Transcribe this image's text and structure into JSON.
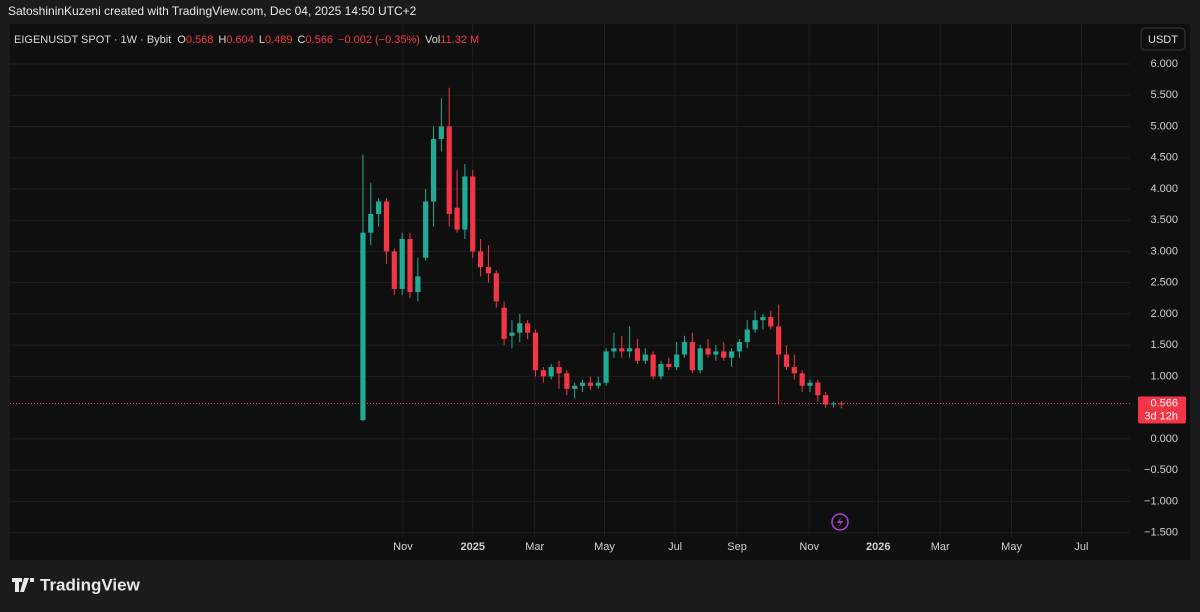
{
  "attribution": "SatoshininKuzeni created with TradingView.com, Dec 04, 2025 14:50 UTC+2",
  "branding": "TradingView",
  "chart_data": {
    "type": "candlestick",
    "title": "EIGENUSDT SPOT · 1W · Bybit",
    "legend": [
      {
        "label": "O",
        "value": "0.568"
      },
      {
        "label": "H",
        "value": "0.604"
      },
      {
        "label": "L",
        "value": "0.489"
      },
      {
        "label": "C",
        "value": "0.566"
      },
      {
        "label": "",
        "value": "−0.002 (−0.35%)"
      },
      {
        "label": "Vol",
        "value": "11.32 M"
      }
    ],
    "currency": "USDT",
    "last_price": 0.566,
    "countdown": "3d 12h",
    "up_color": "#22ab94",
    "down_color": "#f23645",
    "grid": true,
    "categories": [
      null,
      null,
      null,
      null,
      null,
      null,
      null,
      null,
      null,
      null,
      null,
      null,
      null,
      null,
      null,
      null,
      null,
      null,
      null,
      null,
      null,
      null,
      null,
      null,
      null,
      null,
      null,
      null,
      null,
      null,
      null,
      null,
      null,
      null,
      null,
      null,
      null,
      null,
      null,
      null,
      null,
      null,
      null,
      null,
      null,
      null,
      null,
      null,
      null,
      null,
      null,
      null,
      null,
      null,
      null,
      null,
      null,
      null,
      null,
      null,
      null,
      null
    ],
    "open": [
      0.3,
      3.3,
      3.6,
      3.8,
      3.0,
      2.4,
      3.2,
      2.35,
      2.9,
      3.8,
      4.8,
      5.0,
      3.7,
      3.35,
      4.2,
      3.0,
      2.75,
      2.65,
      2.1,
      1.65,
      1.7,
      1.85,
      1.7,
      1.1,
      1.0,
      1.15,
      1.05,
      0.8,
      0.85,
      0.9,
      0.85,
      0.9,
      1.4,
      1.45,
      1.4,
      1.45,
      1.25,
      1.35,
      1.0,
      1.2,
      1.15,
      1.35,
      1.55,
      1.1,
      1.45,
      1.35,
      1.4,
      1.3,
      1.4,
      1.55,
      1.75,
      1.9,
      1.95,
      1.8,
      1.35,
      1.15,
      1.05,
      0.85,
      0.9,
      0.7,
      0.55,
      0.568
    ],
    "high": [
      4.55,
      4.1,
      3.85,
      3.85,
      3.05,
      3.3,
      3.3,
      2.9,
      4.0,
      5.0,
      5.45,
      5.62,
      4.3,
      4.4,
      4.3,
      3.2,
      3.1,
      2.7,
      2.2,
      1.9,
      2.0,
      1.9,
      1.75,
      1.15,
      1.2,
      1.25,
      1.1,
      0.9,
      0.95,
      1.0,
      1.0,
      1.45,
      1.7,
      1.65,
      1.8,
      1.6,
      1.45,
      1.4,
      1.25,
      1.3,
      1.55,
      1.65,
      1.7,
      1.5,
      1.6,
      1.5,
      1.55,
      1.45,
      1.6,
      1.9,
      2.05,
      2.0,
      2.05,
      2.15,
      1.5,
      1.35,
      1.1,
      0.95,
      0.95,
      0.75,
      0.6,
      0.604
    ],
    "low": [
      0.28,
      3.1,
      3.4,
      2.8,
      2.3,
      2.3,
      2.25,
      2.2,
      2.85,
      3.4,
      4.6,
      3.4,
      3.3,
      3.2,
      2.9,
      2.6,
      2.5,
      2.1,
      1.5,
      1.45,
      1.55,
      1.6,
      1.0,
      0.9,
      0.95,
      0.8,
      0.7,
      0.65,
      0.75,
      0.78,
      0.8,
      0.85,
      1.3,
      1.3,
      1.3,
      1.2,
      1.2,
      0.95,
      0.95,
      1.1,
      1.1,
      1.3,
      1.05,
      1.05,
      1.3,
      1.25,
      1.25,
      1.15,
      1.3,
      1.45,
      1.7,
      1.75,
      1.75,
      0.55,
      1.1,
      0.95,
      0.75,
      0.75,
      0.6,
      0.5,
      0.5,
      0.489
    ],
    "close": [
      3.3,
      3.6,
      3.8,
      3.0,
      2.4,
      3.2,
      2.35,
      2.6,
      3.8,
      4.8,
      5.0,
      3.6,
      3.35,
      4.2,
      3.0,
      2.75,
      2.65,
      2.2,
      1.6,
      1.7,
      1.85,
      1.7,
      1.1,
      1.0,
      1.15,
      1.05,
      0.8,
      0.85,
      0.9,
      0.85,
      0.9,
      1.4,
      1.45,
      1.4,
      1.45,
      1.25,
      1.35,
      1.0,
      1.2,
      1.15,
      1.35,
      1.55,
      1.1,
      1.45,
      1.35,
      1.4,
      1.3,
      1.4,
      1.55,
      1.75,
      1.9,
      1.95,
      1.8,
      1.35,
      1.15,
      1.05,
      0.85,
      0.9,
      0.7,
      0.55,
      0.568,
      0.566
    ],
    "xlim": [
      -45.0,
      97.8
    ],
    "xticks": [
      {
        "value": 5.1,
        "label": "Nov"
      },
      {
        "value": 14.0,
        "label": "2025"
      },
      {
        "value": 21.9,
        "label": "Mar"
      },
      {
        "value": 30.8,
        "label": "May"
      },
      {
        "value": 39.8,
        "label": "Jul"
      },
      {
        "value": 47.7,
        "label": "Sep"
      },
      {
        "value": 56.9,
        "label": "Nov"
      },
      {
        "value": 65.7,
        "label": "2026"
      },
      {
        "value": 73.6,
        "label": "Mar"
      },
      {
        "value": 82.7,
        "label": "May"
      },
      {
        "value": 91.6,
        "label": "Jul"
      }
    ],
    "ylim": [
      -1.57,
      6.64
    ],
    "yticks": [
      {
        "value": 6,
        "label": "6.000"
      },
      {
        "value": 5.5,
        "label": "5.500"
      },
      {
        "value": 5,
        "label": "5.000"
      },
      {
        "value": 4.5,
        "label": "4.500"
      },
      {
        "value": 4,
        "label": "4.000"
      },
      {
        "value": 3.5,
        "label": "3.500"
      },
      {
        "value": 3,
        "label": "3.000"
      },
      {
        "value": 2.5,
        "label": "2.500"
      },
      {
        "value": 2,
        "label": "2.000"
      },
      {
        "value": 1.5,
        "label": "1.500"
      },
      {
        "value": 1,
        "label": "1.000"
      },
      {
        "value": 0,
        "label": "0.000"
      },
      {
        "value": -0.5,
        "label": "−0.500"
      },
      {
        "value": -1,
        "label": "−1.000"
      },
      {
        "value": -1.5,
        "label": "−1.500"
      }
    ]
  }
}
